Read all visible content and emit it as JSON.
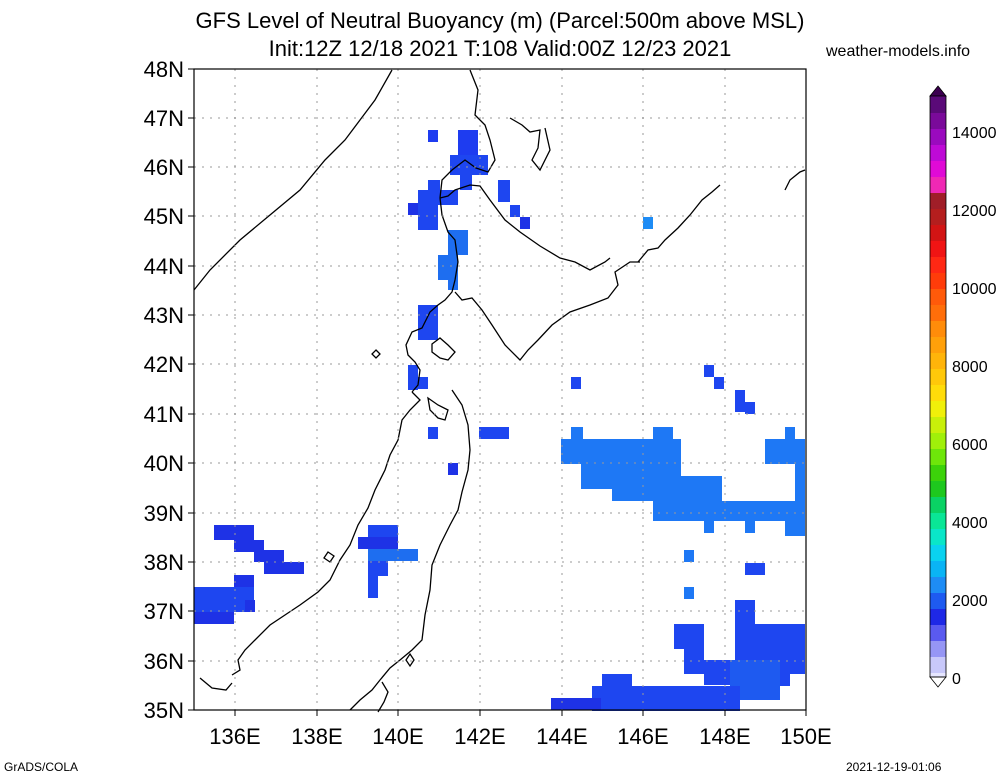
{
  "title_line1": "GFS Level of Neutral Buoyancy (m) (Parcel:500m above MSL)",
  "title_line2": "Init:12Z 12/18 2021 T:108 Valid:00Z 12/23 2021",
  "site": "weather-models.info",
  "footer_left": "GrADS/COLA",
  "footer_right": "2021-12-19-01:06",
  "lat_labels": [
    "48N",
    "47N",
    "46N",
    "45N",
    "44N",
    "43N",
    "42N",
    "41N",
    "40N",
    "39N",
    "38N",
    "37N",
    "36N",
    "35N"
  ],
  "lon_labels": [
    "136E",
    "138E",
    "140E",
    "142E",
    "144E",
    "146E",
    "148E",
    "150E"
  ],
  "colorbar_labels": [
    "14000",
    "12000",
    "10000",
    "8000",
    "6000",
    "4000",
    "2000",
    "0"
  ],
  "colors": {
    "blue_dark": "#1e1ee6",
    "blue_mid": "#1e46f0",
    "blue_light": "#1e82f5",
    "coast": "#000000",
    "grid": "#9a9a9a"
  }
}
